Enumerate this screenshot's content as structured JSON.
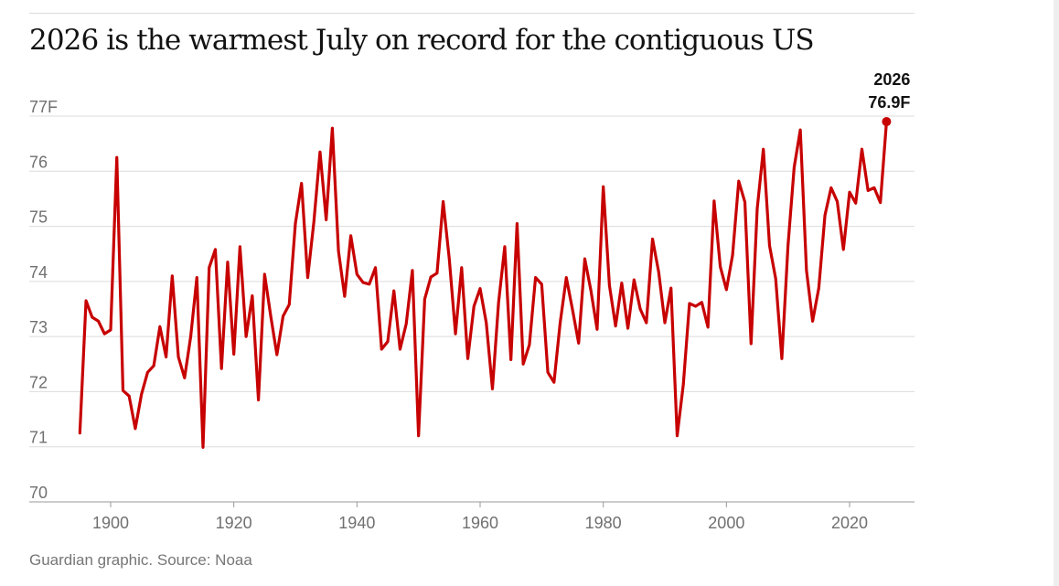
{
  "header": {
    "title": "2026 is the warmest July on record for the contiguous US"
  },
  "footer": {
    "source": "Guardian graphic. Source: Noaa"
  },
  "colors": {
    "line": "#c70000",
    "grid": "#dcdcdc",
    "text": "#121212",
    "muted": "#707070"
  },
  "chart_data": {
    "type": "line",
    "title": "2026 is the warmest July on record for the contiguous US",
    "xlabel": "",
    "ylabel": "",
    "xlim": [
      1892,
      2030
    ],
    "ylim": [
      70,
      77
    ],
    "grid": true,
    "y_ticks": [
      {
        "value": 70,
        "label": "70"
      },
      {
        "value": 71,
        "label": "71"
      },
      {
        "value": 72,
        "label": "72"
      },
      {
        "value": 73,
        "label": "73"
      },
      {
        "value": 74,
        "label": "74"
      },
      {
        "value": 75,
        "label": "75"
      },
      {
        "value": 76,
        "label": "76"
      },
      {
        "value": 77,
        "label": "77F"
      }
    ],
    "x_ticks": [
      {
        "value": 1900,
        "label": "1900"
      },
      {
        "value": 1920,
        "label": "1920"
      },
      {
        "value": 1940,
        "label": "1940"
      },
      {
        "value": 1960,
        "label": "1960"
      },
      {
        "value": 1980,
        "label": "1980"
      },
      {
        "value": 2000,
        "label": "2000"
      },
      {
        "value": 2020,
        "label": "2020"
      }
    ],
    "x": [
      1895,
      1896,
      1897,
      1898,
      1899,
      1900,
      1901,
      1902,
      1903,
      1904,
      1905,
      1906,
      1907,
      1908,
      1909,
      1910,
      1911,
      1912,
      1913,
      1914,
      1915,
      1916,
      1917,
      1918,
      1919,
      1920,
      1921,
      1922,
      1923,
      1924,
      1925,
      1926,
      1927,
      1928,
      1929,
      1930,
      1931,
      1932,
      1933,
      1934,
      1935,
      1936,
      1937,
      1938,
      1939,
      1940,
      1941,
      1942,
      1943,
      1944,
      1945,
      1946,
      1947,
      1948,
      1949,
      1950,
      1951,
      1952,
      1953,
      1954,
      1955,
      1956,
      1957,
      1958,
      1959,
      1960,
      1961,
      1962,
      1963,
      1964,
      1965,
      1966,
      1967,
      1968,
      1969,
      1970,
      1971,
      1972,
      1973,
      1974,
      1975,
      1976,
      1977,
      1978,
      1979,
      1980,
      1981,
      1982,
      1983,
      1984,
      1985,
      1986,
      1987,
      1988,
      1989,
      1990,
      1991,
      1992,
      1993,
      1994,
      1995,
      1996,
      1997,
      1998,
      1999,
      2000,
      2001,
      2002,
      2003,
      2004,
      2005,
      2006,
      2007,
      2008,
      2009,
      2010,
      2011,
      2012,
      2013,
      2014,
      2015,
      2016,
      2017,
      2018,
      2019,
      2020,
      2021,
      2022,
      2023,
      2024,
      2025,
      2026
    ],
    "series": [
      {
        "values": [
          71.25,
          73.65,
          73.35,
          73.28,
          73.05,
          73.12,
          76.25,
          72.02,
          71.92,
          71.33,
          71.95,
          72.35,
          72.47,
          73.18,
          72.63,
          74.1,
          72.63,
          72.25,
          73.0,
          74.07,
          70.99,
          74.25,
          74.58,
          72.42,
          74.35,
          72.68,
          74.63,
          73.0,
          73.74,
          71.85,
          74.13,
          73.37,
          72.67,
          73.37,
          73.58,
          75.05,
          75.78,
          74.07,
          75.08,
          76.35,
          75.12,
          76.78,
          74.55,
          73.73,
          74.83,
          74.13,
          73.98,
          73.95,
          74.25,
          72.77,
          72.91,
          73.83,
          72.77,
          73.23,
          74.2,
          71.2,
          73.68,
          74.08,
          74.15,
          75.45,
          74.4,
          73.05,
          74.25,
          72.6,
          73.55,
          73.87,
          73.25,
          72.05,
          73.62,
          74.63,
          72.58,
          75.05,
          72.5,
          72.85,
          74.07,
          73.95,
          72.35,
          72.17,
          73.25,
          74.07,
          73.49,
          72.88,
          74.41,
          73.83,
          73.13,
          75.72,
          73.93,
          73.19,
          73.97,
          73.15,
          74.03,
          73.5,
          73.25,
          74.77,
          74.17,
          73.25,
          73.88,
          71.2,
          72.13,
          73.6,
          73.55,
          73.62,
          73.17,
          75.46,
          74.27,
          73.85,
          74.48,
          75.82,
          75.44,
          72.87,
          75.32,
          76.4,
          74.65,
          74.05,
          72.6,
          74.65,
          76.07,
          76.75,
          74.2,
          73.28,
          73.88,
          75.2,
          75.7,
          75.45,
          74.58,
          75.62,
          75.42,
          76.4,
          75.65,
          75.7,
          75.43,
          76.9
        ]
      }
    ],
    "annotation": {
      "x": 2026,
      "y": 76.9,
      "label_year": "2026",
      "label_value": "76.9F"
    }
  }
}
